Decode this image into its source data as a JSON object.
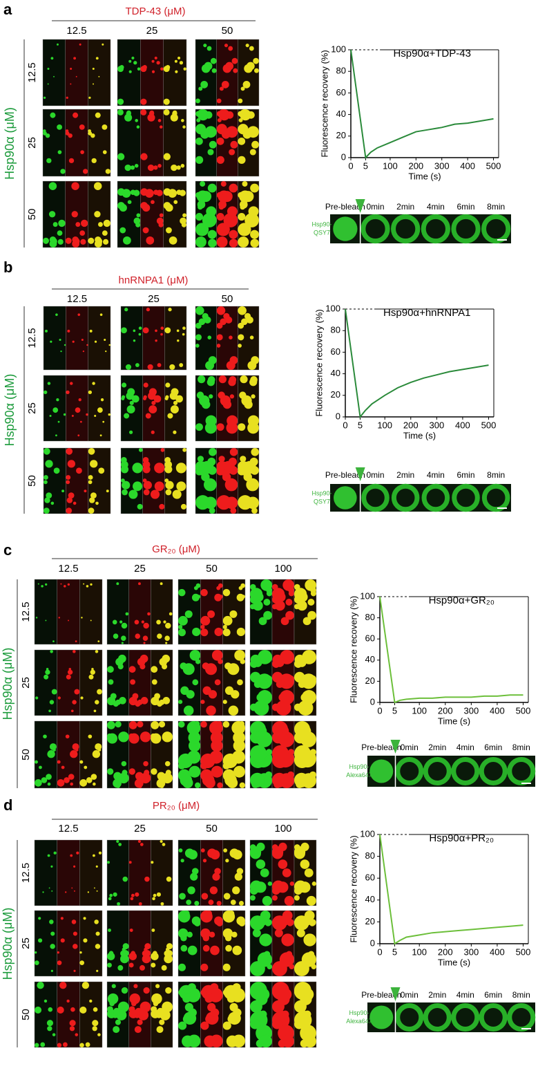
{
  "panels": [
    {
      "letter": "a",
      "title": "TDP-43 (μM)",
      "columns": [
        "12.5",
        "25",
        "50"
      ],
      "ylabel": "Hsp90α (μM)",
      "rows": [
        "12.5",
        "25",
        "50"
      ],
      "strip_labels": [
        "Pre-bleach",
        "0min",
        "2min",
        "4min",
        "6min",
        "8min"
      ],
      "probe": [
        "Hsp90-",
        "QSY7"
      ]
    },
    {
      "letter": "b",
      "title": "hnRNPA1 (μM)",
      "columns": [
        "12.5",
        "25",
        "50"
      ],
      "ylabel": "Hsp90α (μM)",
      "rows": [
        "12.5",
        "25",
        "50"
      ],
      "strip_labels": [
        "Pre-bleach",
        "0min",
        "2min",
        "4min",
        "6min",
        "8min"
      ],
      "probe": [
        "Hsp90-",
        "QSY7"
      ]
    },
    {
      "letter": "c",
      "title": "GR₂₀ (μM)",
      "columns": [
        "12.5",
        "25",
        "50",
        "100"
      ],
      "ylabel": "Hsp90α (μM)",
      "rows": [
        "12.5",
        "25",
        "50"
      ],
      "strip_labels": [
        "Pre-bleach",
        "0min",
        "2min",
        "4min",
        "6min",
        "8min"
      ],
      "probe": [
        "Hsp90-",
        "Alexa647"
      ]
    },
    {
      "letter": "d",
      "title": "PR₂₀ (μM)",
      "columns": [
        "12.5",
        "25",
        "50",
        "100"
      ],
      "ylabel": "Hsp90α (μM)",
      "rows": [
        "12.5",
        "25",
        "50"
      ],
      "strip_labels": [
        "Pre-bleach",
        "0min",
        "2min",
        "4min",
        "6min",
        "8min"
      ],
      "probe": [
        "Hsp90-",
        "Alexa647"
      ]
    }
  ],
  "chart_data": [
    {
      "type": "line",
      "title": "Hsp90α+TDP-43",
      "xlabel": "Time (s)",
      "ylabel": "Fluorescence recovery (%)",
      "x": [
        0,
        5,
        25,
        50,
        100,
        150,
        200,
        250,
        300,
        350,
        400,
        450,
        500
      ],
      "series": [
        {
          "color": "#2a8a3a",
          "values": [
            100,
            0,
            5,
            9,
            14,
            19,
            24,
            26,
            28,
            31,
            32,
            34,
            36
          ]
        }
      ],
      "xlim": [
        0,
        520
      ],
      "ylim": [
        0,
        100
      ],
      "xticks": [
        0,
        5,
        100,
        200,
        300,
        400,
        500
      ],
      "yticks": [
        0,
        20,
        40,
        60,
        80,
        100
      ]
    },
    {
      "type": "line",
      "title": "Hsp90α+hnRNPA1",
      "xlabel": "Time (s)",
      "ylabel": "Fluorescence recovery (%)",
      "x": [
        0,
        5,
        25,
        50,
        100,
        150,
        200,
        250,
        300,
        350,
        400,
        450,
        500
      ],
      "series": [
        {
          "color": "#2a8a3a",
          "values": [
            100,
            0,
            6,
            12,
            20,
            27,
            32,
            36,
            39,
            42,
            44,
            46,
            48
          ]
        }
      ],
      "xlim": [
        0,
        520
      ],
      "ylim": [
        0,
        100
      ],
      "xticks": [
        0,
        5,
        100,
        200,
        300,
        400,
        500
      ],
      "yticks": [
        0,
        20,
        40,
        60,
        80,
        100
      ]
    },
    {
      "type": "line",
      "title": "Hsp90α+GR₂₀",
      "xlabel": "Time (s)",
      "ylabel": "Fluorescence recovery (%)",
      "x": [
        0,
        5,
        25,
        50,
        100,
        150,
        200,
        250,
        300,
        350,
        400,
        450,
        500
      ],
      "series": [
        {
          "color": "#6cbf3a",
          "values": [
            100,
            0,
            2,
            3,
            4,
            4,
            5,
            5,
            5,
            6,
            6,
            7,
            7
          ]
        }
      ],
      "xlim": [
        0,
        520
      ],
      "ylim": [
        0,
        100
      ],
      "xticks": [
        0,
        5,
        100,
        200,
        300,
        400,
        500
      ],
      "yticks": [
        0,
        20,
        40,
        60,
        80,
        100
      ]
    },
    {
      "type": "line",
      "title": "Hsp90α+PR₂₀",
      "xlabel": "Time (s)",
      "ylabel": "Fluorescence recovery (%)",
      "x": [
        0,
        5,
        25,
        50,
        100,
        150,
        200,
        250,
        300,
        350,
        400,
        450,
        500
      ],
      "series": [
        {
          "color": "#6cbf3a",
          "values": [
            100,
            0,
            3,
            6,
            8,
            10,
            11,
            12,
            13,
            14,
            15,
            16,
            17
          ]
        }
      ],
      "xlim": [
        0,
        520
      ],
      "ylim": [
        0,
        100
      ],
      "xticks": [
        0,
        5,
        100,
        200,
        300,
        400,
        500
      ],
      "yticks": [
        0,
        20,
        40,
        60,
        80,
        100
      ]
    }
  ]
}
